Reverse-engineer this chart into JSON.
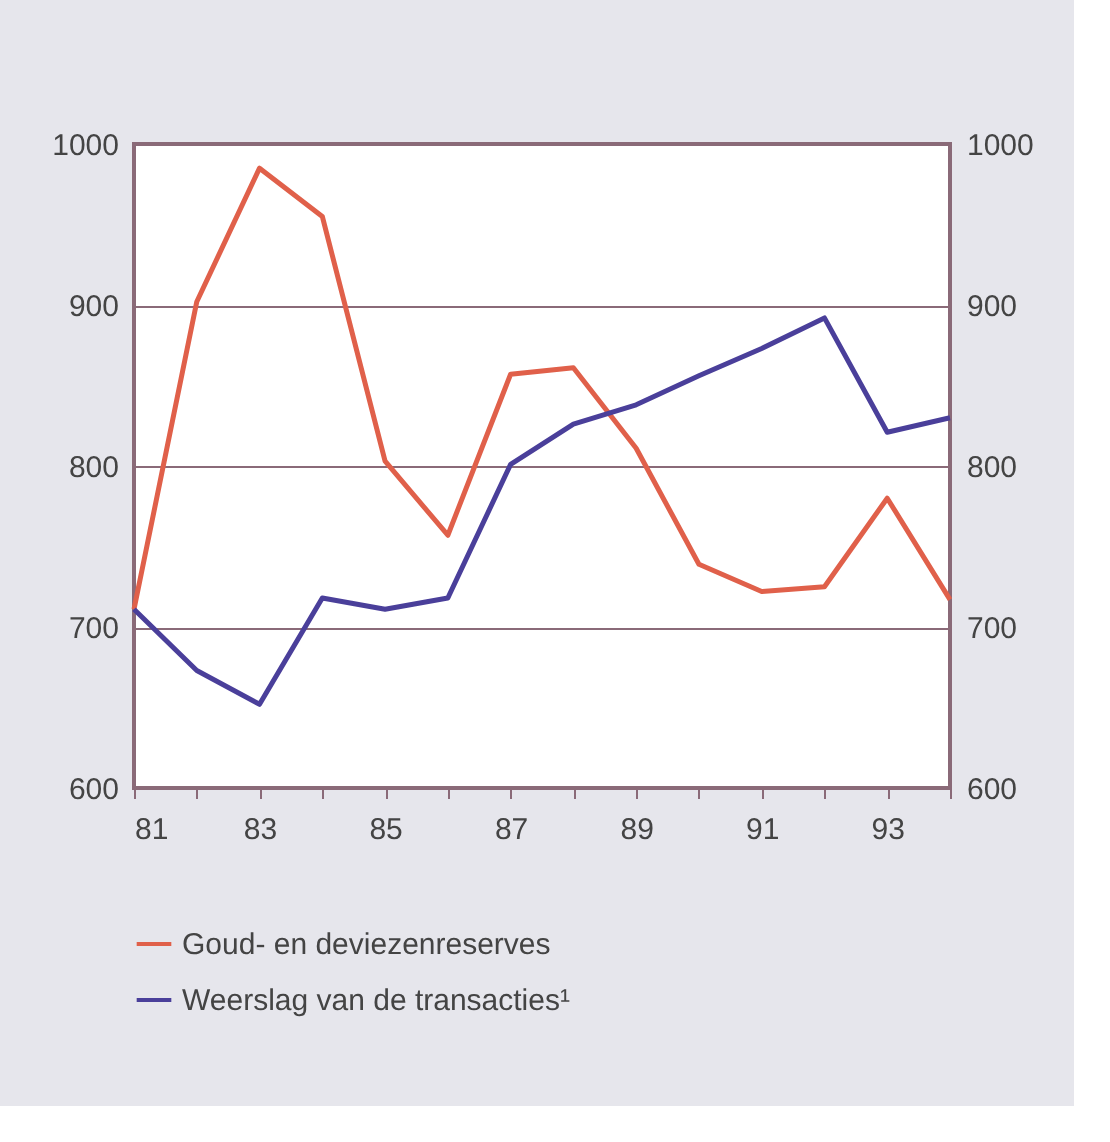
{
  "chart_data": {
    "type": "line",
    "x": [
      81,
      82,
      83,
      84,
      85,
      86,
      87,
      88,
      89,
      90,
      91,
      92,
      93,
      94
    ],
    "series": [
      {
        "name": "Goud- en deviezenreserves",
        "color": "#e0604a",
        "values": [
          711,
          902,
          985,
          955,
          803,
          757,
          857,
          861,
          811,
          739,
          722,
          725,
          780,
          717
        ]
      },
      {
        "name": "Weerslag van de transacties¹",
        "color": "#4a3f9a",
        "values": [
          711,
          673,
          652,
          718,
          711,
          718,
          801,
          826,
          838,
          856,
          873,
          892,
          821,
          830
        ]
      }
    ],
    "xlim": [
      81,
      94
    ],
    "xticks": [
      81,
      {
        "value": 82,
        "label": null
      },
      83,
      {
        "value": 84,
        "label": null
      },
      85,
      {
        "value": 86,
        "label": null
      },
      87,
      {
        "value": 88,
        "label": null
      },
      89,
      {
        "value": 90,
        "label": null
      },
      91,
      {
        "value": 92,
        "label": null
      },
      93,
      {
        "value": 94,
        "label": null
      }
    ],
    "ylim": [
      600,
      1000
    ],
    "yticks": [
      600,
      700,
      800,
      900,
      1000
    ],
    "y2lim": [
      600,
      1000
    ],
    "y2ticks": [
      600,
      700,
      800,
      900,
      1000
    ],
    "grid": "y",
    "legend": "bottom",
    "marker": "none",
    "line_style": "solid"
  }
}
